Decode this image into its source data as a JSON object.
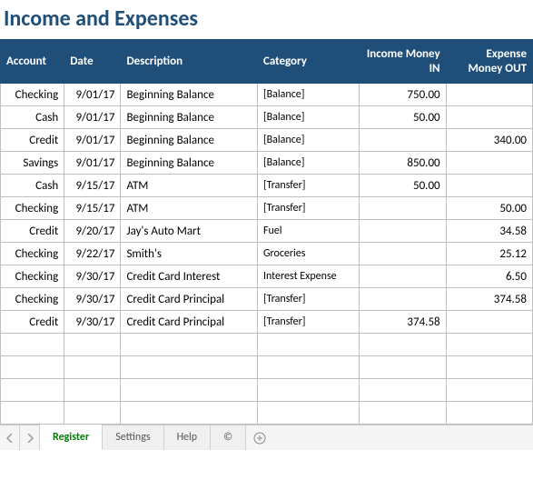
{
  "title": "Income and Expenses",
  "header_bg": "#1f4e79",
  "header_fg": "#ffffff",
  "title_color": "#1f4e79",
  "grid_color": "#bfbfbf",
  "columns": {
    "account": "Account",
    "date": "Date",
    "description": "Description",
    "category": "Category",
    "income": "Income Money IN",
    "expense": "Expense Money OUT"
  },
  "rows": [
    {
      "account": "Checking",
      "date": "9/01/17",
      "desc": "Beginning Balance",
      "cat": "[Balance]",
      "in": "750.00",
      "out": ""
    },
    {
      "account": "Cash",
      "date": "9/01/17",
      "desc": "Beginning Balance",
      "cat": "[Balance]",
      "in": "50.00",
      "out": ""
    },
    {
      "account": "Credit",
      "date": "9/01/17",
      "desc": "Beginning Balance",
      "cat": "[Balance]",
      "in": "",
      "out": "340.00"
    },
    {
      "account": "Savings",
      "date": "9/01/17",
      "desc": "Beginning Balance",
      "cat": "[Balance]",
      "in": "850.00",
      "out": ""
    },
    {
      "account": "Cash",
      "date": "9/15/17",
      "desc": "ATM",
      "cat": "[Transfer]",
      "in": "50.00",
      "out": ""
    },
    {
      "account": "Checking",
      "date": "9/15/17",
      "desc": "ATM",
      "cat": "[Transfer]",
      "in": "",
      "out": "50.00"
    },
    {
      "account": "Credit",
      "date": "9/20/17",
      "desc": "Jay's Auto Mart",
      "cat": "Fuel",
      "in": "",
      "out": "34.58"
    },
    {
      "account": "Checking",
      "date": "9/22/17",
      "desc": "Smith's",
      "cat": "Groceries",
      "in": "",
      "out": "25.12"
    },
    {
      "account": "Checking",
      "date": "9/30/17",
      "desc": "Credit Card Interest",
      "cat": "Interest Expense",
      "in": "",
      "out": "6.50"
    },
    {
      "account": "Checking",
      "date": "9/30/17",
      "desc": "Credit Card Principal",
      "cat": "[Transfer]",
      "in": "",
      "out": "374.58"
    },
    {
      "account": "Credit",
      "date": "9/30/17",
      "desc": "Credit Card Principal",
      "cat": "[Transfer]",
      "in": "374.58",
      "out": ""
    },
    {
      "account": "",
      "date": "",
      "desc": "",
      "cat": "",
      "in": "",
      "out": ""
    },
    {
      "account": "",
      "date": "",
      "desc": "",
      "cat": "",
      "in": "",
      "out": ""
    },
    {
      "account": "",
      "date": "",
      "desc": "",
      "cat": "",
      "in": "",
      "out": ""
    },
    {
      "account": "",
      "date": "",
      "desc": "",
      "cat": "",
      "in": "",
      "out": ""
    }
  ],
  "tabs": {
    "register": "Register",
    "settings": "Settings",
    "help": "Help",
    "copyright": "©"
  }
}
